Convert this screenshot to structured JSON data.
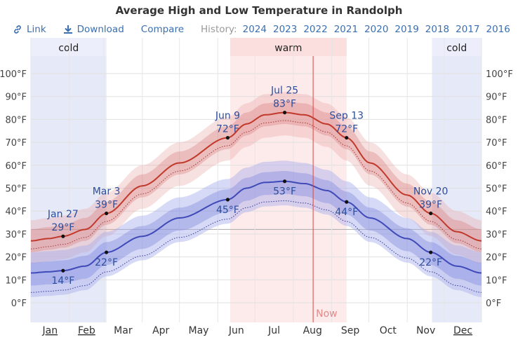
{
  "title": "Average High and Low Temperature in Randolph",
  "toolbar": {
    "link_label": "Link",
    "download_label": "Download",
    "compare_label": "Compare",
    "history_label": "History:",
    "years": [
      "2024",
      "2023",
      "2022",
      "2021",
      "2020",
      "2019",
      "2018",
      "2017",
      "2016"
    ]
  },
  "season_labels": {
    "cold": "cold",
    "warm": "warm"
  },
  "now_label": "Now",
  "colors": {
    "high_line": "#c0392b",
    "low_line": "#3f49b8",
    "warm_band": "#fde6e6",
    "cold_band": "#dde2f6",
    "annotation_text": "#2c4d9c",
    "now_line": "#d04a4a"
  },
  "chart_data": {
    "type": "line",
    "title": "Average High and Low Temperature in Randolph",
    "xlabel": "",
    "ylabel": "",
    "ylim": [
      -10,
      110
    ],
    "y_unit": "°F",
    "yticks": [
      0,
      10,
      20,
      30,
      40,
      50,
      60,
      70,
      80,
      90,
      100
    ],
    "ytick_labels": [
      "0°F",
      "10°F",
      "20°F",
      "30°F",
      "40°F",
      "50°F",
      "60°F",
      "70°F",
      "80°F",
      "90°F",
      "100°F"
    ],
    "months": [
      "Jan",
      "Feb",
      "Mar",
      "Apr",
      "May",
      "Jun",
      "Jul",
      "Aug",
      "Sep",
      "Oct",
      "Nov",
      "Dec"
    ],
    "grid": true,
    "cold_periods": [
      {
        "start_day": 1,
        "end_day": 62
      },
      {
        "start_day": 325,
        "end_day": 365
      }
    ],
    "warm_period": {
      "start_day": 162,
      "end_day": 256
    },
    "now_day": 229,
    "freezing_line": 32,
    "series": [
      {
        "name": "high",
        "days": [
          1,
          15,
          27,
          45,
          62,
          91,
          121,
          160,
          175,
          190,
          206,
          222,
          240,
          256,
          275,
          305,
          324,
          345,
          365
        ],
        "values": [
          27,
          28,
          29,
          32,
          39,
          51,
          61,
          72,
          78,
          82,
          83,
          82,
          78,
          72,
          61,
          47,
          39,
          31,
          27
        ]
      },
      {
        "name": "low",
        "days": [
          1,
          15,
          27,
          45,
          62,
          91,
          121,
          160,
          175,
          190,
          206,
          222,
          240,
          256,
          275,
          305,
          324,
          345,
          365
        ],
        "values": [
          13,
          13.5,
          14,
          16,
          22,
          29,
          37,
          45,
          50,
          52.5,
          53,
          52,
          49,
          44,
          37,
          28,
          22,
          16,
          13
        ]
      }
    ],
    "annotations": [
      {
        "date": "Jan 27",
        "day": 27,
        "value": 29,
        "label": "29°F",
        "series": "high",
        "position": "above"
      },
      {
        "date": "",
        "day": 27,
        "value": 14,
        "label": "14°F",
        "series": "low",
        "position": "below"
      },
      {
        "date": "Mar 3",
        "day": 62,
        "value": 39,
        "label": "39°F",
        "series": "high",
        "position": "above"
      },
      {
        "date": "",
        "day": 62,
        "value": 22,
        "label": "22°F",
        "series": "low",
        "position": "below"
      },
      {
        "date": "Jun 9",
        "day": 160,
        "value": 72,
        "label": "72°F",
        "series": "high",
        "position": "above"
      },
      {
        "date": "",
        "day": 160,
        "value": 45,
        "label": "45°F",
        "series": "low",
        "position": "below"
      },
      {
        "date": "Jul 25",
        "day": 206,
        "value": 83,
        "label": "83°F",
        "series": "high",
        "position": "above"
      },
      {
        "date": "",
        "day": 206,
        "value": 53,
        "label": "53°F",
        "series": "low",
        "position": "below"
      },
      {
        "date": "Sep 13",
        "day": 256,
        "value": 72,
        "label": "72°F",
        "series": "high",
        "position": "above"
      },
      {
        "date": "",
        "day": 256,
        "value": 44,
        "label": "44°F",
        "series": "low",
        "position": "below"
      },
      {
        "date": "Nov 20",
        "day": 324,
        "value": 39,
        "label": "39°F",
        "series": "high",
        "position": "above"
      },
      {
        "date": "",
        "day": 324,
        "value": 22,
        "label": "22°F",
        "series": "low",
        "position": "below"
      }
    ]
  }
}
